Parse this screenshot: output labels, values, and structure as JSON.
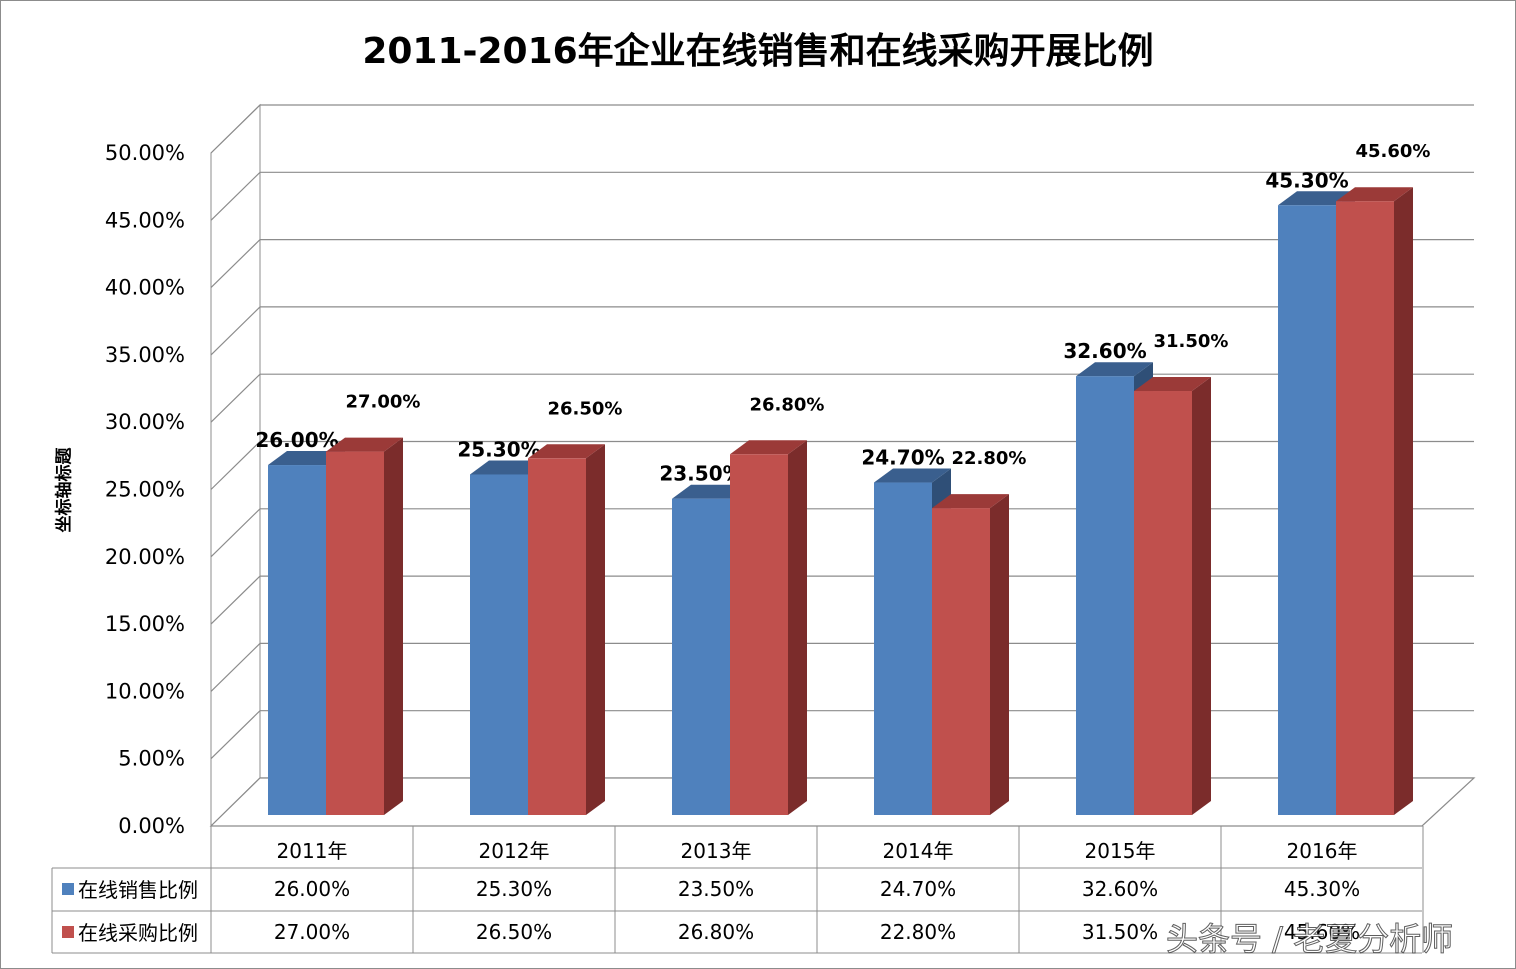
{
  "chart_data": {
    "type": "bar",
    "title": "2011-2016年企业在线销售和在线采购开展比例",
    "ylabel": "坐标轴标题",
    "xlabel": "",
    "ylim": [
      0,
      50
    ],
    "yticks": [
      "0.00%",
      "5.00%",
      "10.00%",
      "15.00%",
      "20.00%",
      "25.00%",
      "30.00%",
      "35.00%",
      "40.00%",
      "45.00%",
      "50.00%"
    ],
    "categories": [
      "2011年",
      "2012年",
      "2013年",
      "2014年",
      "2015年",
      "2016年"
    ],
    "series": [
      {
        "name": "在线销售比例",
        "values": [
          26.0,
          25.3,
          23.5,
          24.7,
          32.6,
          45.3
        ],
        "labels": [
          "26.00%",
          "25.30%",
          "23.50%",
          "24.70%",
          "32.60%",
          "45.30%"
        ],
        "table_labels": [
          "26.00%",
          "25.30%",
          "23.50%",
          "24.70%",
          "32.60%",
          "45.30%"
        ],
        "color": "#4f81bd",
        "top_color": "#3a5f8e",
        "side_color": "#2f4f77"
      },
      {
        "name": "在线采购比例",
        "values": [
          27.0,
          26.5,
          26.8,
          22.8,
          31.5,
          45.6
        ],
        "labels": [
          "27.00%",
          "26.50%",
          "26.80%",
          "22.80%",
          "31.50%",
          "45.60%"
        ],
        "table_labels": [
          "27.00%",
          "26.50%",
          "26.80%",
          "22.80%",
          "31.50%",
          "45.60%"
        ],
        "color": "#c0504d",
        "top_color": "#9b3a38",
        "side_color": "#7b2c2b"
      }
    ],
    "grid": true,
    "legend": "data-table"
  },
  "watermark": "头条号 / 老夏分析师"
}
